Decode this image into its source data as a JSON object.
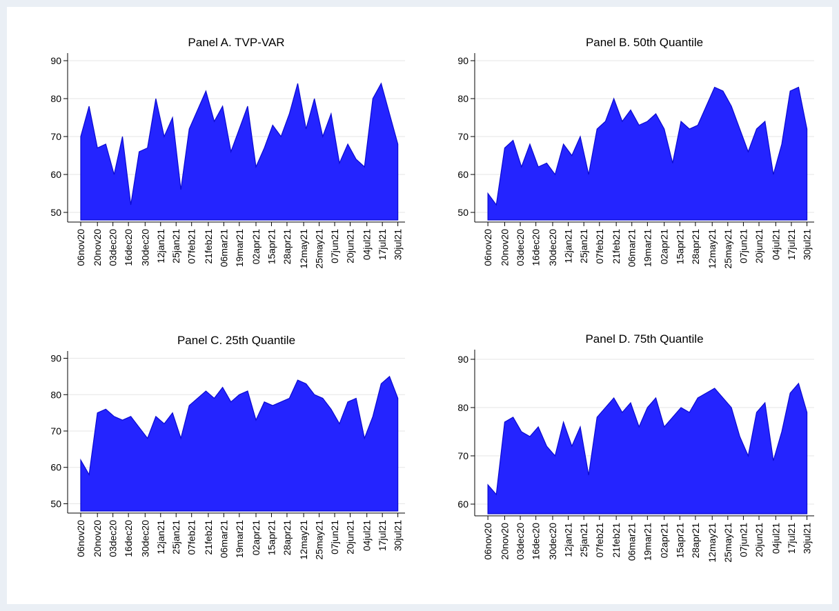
{
  "chart_data": [
    {
      "type": "area",
      "title": "Panel A. TVP-VAR",
      "color": "#2424ff",
      "line_color": "#0a0ad0",
      "x": [
        "2020-11-06",
        "2020-11-13",
        "2020-11-20",
        "2020-11-27",
        "2020-12-04",
        "2020-12-11",
        "2020-12-18",
        "2020-12-25",
        "2021-01-01",
        "2021-01-08",
        "2021-01-15",
        "2021-01-22",
        "2021-01-29",
        "2021-02-05",
        "2021-02-12",
        "2021-02-19",
        "2021-02-26",
        "2021-03-05",
        "2021-03-12",
        "2021-03-19",
        "2021-03-26",
        "2021-04-02",
        "2021-04-09",
        "2021-04-16",
        "2021-04-23",
        "2021-04-30",
        "2021-05-07",
        "2021-05-14",
        "2021-05-21",
        "2021-05-28",
        "2021-06-04",
        "2021-06-11",
        "2021-06-18",
        "2021-06-25",
        "2021-07-02",
        "2021-07-09",
        "2021-07-16",
        "2021-07-23",
        "2021-07-30"
      ],
      "values": [
        70,
        78,
        67,
        68,
        60,
        70,
        52,
        66,
        67,
        80,
        70,
        75,
        56,
        72,
        77,
        82,
        74,
        78,
        66,
        72,
        78,
        62,
        67,
        73,
        70,
        76,
        84,
        72,
        80,
        70,
        76,
        63,
        68,
        64,
        62,
        80,
        84,
        76,
        68
      ],
      "xlim": [
        "2020-10-26",
        "2021-08-05"
      ],
      "ylim": [
        48,
        92
      ],
      "yticks": [
        50,
        60,
        70,
        80,
        90
      ],
      "grid": true,
      "xticks": [
        {
          "value": "2020-11-06",
          "label": "06nov20"
        },
        {
          "value": "2020-11-20",
          "label": "20nov20"
        },
        {
          "value": "2020-12-03",
          "label": "03dec20"
        },
        {
          "value": "2020-12-16",
          "label": "16dec20"
        },
        {
          "value": "2020-12-30",
          "label": "30dec20"
        },
        {
          "value": "2021-01-12",
          "label": "12jan21"
        },
        {
          "value": "2021-01-25",
          "label": "25jan21"
        },
        {
          "value": "2021-02-07",
          "label": "07feb21"
        },
        {
          "value": "2021-02-21",
          "label": "21feb21"
        },
        {
          "value": "2021-03-06",
          "label": "06mar21"
        },
        {
          "value": "2021-03-19",
          "label": "19mar21"
        },
        {
          "value": "2021-04-02",
          "label": "02apr21"
        },
        {
          "value": "2021-04-15",
          "label": "15apr21"
        },
        {
          "value": "2021-04-28",
          "label": "28apr21"
        },
        {
          "value": "2021-05-12",
          "label": "12may21"
        },
        {
          "value": "2021-05-25",
          "label": "25may21"
        },
        {
          "value": "2021-06-07",
          "label": "07jun21"
        },
        {
          "value": "2021-06-20",
          "label": "20jun21"
        },
        {
          "value": "2021-07-04",
          "label": "04jul21"
        },
        {
          "value": "2021-07-17",
          "label": "17jul21"
        },
        {
          "value": "2021-07-30",
          "label": "30jul21"
        }
      ]
    },
    {
      "type": "area",
      "title": "Panel B. 50th Quantile",
      "color": "#2424ff",
      "line_color": "#0a0ad0",
      "x": [
        "2020-11-06",
        "2020-11-13",
        "2020-11-20",
        "2020-11-27",
        "2020-12-04",
        "2020-12-11",
        "2020-12-18",
        "2020-12-25",
        "2021-01-01",
        "2021-01-08",
        "2021-01-15",
        "2021-01-22",
        "2021-01-29",
        "2021-02-05",
        "2021-02-12",
        "2021-02-19",
        "2021-02-26",
        "2021-03-05",
        "2021-03-12",
        "2021-03-19",
        "2021-03-26",
        "2021-04-02",
        "2021-04-09",
        "2021-04-16",
        "2021-04-23",
        "2021-04-30",
        "2021-05-07",
        "2021-05-14",
        "2021-05-21",
        "2021-05-28",
        "2021-06-04",
        "2021-06-11",
        "2021-06-18",
        "2021-06-25",
        "2021-07-02",
        "2021-07-09",
        "2021-07-16",
        "2021-07-23",
        "2021-07-30"
      ],
      "values": [
        55,
        52,
        67,
        69,
        62,
        68,
        62,
        63,
        60,
        68,
        65,
        70,
        60,
        72,
        74,
        80,
        74,
        77,
        73,
        74,
        76,
        72,
        63,
        74,
        72,
        73,
        78,
        83,
        82,
        78,
        72,
        66,
        72,
        74,
        60,
        68,
        82,
        83,
        72
      ],
      "xlim": [
        "2020-10-26",
        "2021-08-05"
      ],
      "ylim": [
        48,
        92
      ],
      "yticks": [
        50,
        60,
        70,
        80,
        90
      ],
      "grid": true,
      "xticks": [
        {
          "value": "2020-11-06",
          "label": "06nov20"
        },
        {
          "value": "2020-11-20",
          "label": "20nov20"
        },
        {
          "value": "2020-12-03",
          "label": "03dec20"
        },
        {
          "value": "2020-12-16",
          "label": "16dec20"
        },
        {
          "value": "2020-12-30",
          "label": "30dec20"
        },
        {
          "value": "2021-01-12",
          "label": "12jan21"
        },
        {
          "value": "2021-01-25",
          "label": "25jan21"
        },
        {
          "value": "2021-02-07",
          "label": "07feb21"
        },
        {
          "value": "2021-02-21",
          "label": "21feb21"
        },
        {
          "value": "2021-03-06",
          "label": "06mar21"
        },
        {
          "value": "2021-03-19",
          "label": "19mar21"
        },
        {
          "value": "2021-04-02",
          "label": "02apr21"
        },
        {
          "value": "2021-04-15",
          "label": "15apr21"
        },
        {
          "value": "2021-04-28",
          "label": "28apr21"
        },
        {
          "value": "2021-05-12",
          "label": "12may21"
        },
        {
          "value": "2021-05-25",
          "label": "25may21"
        },
        {
          "value": "2021-06-07",
          "label": "07jun21"
        },
        {
          "value": "2021-06-20",
          "label": "20jun21"
        },
        {
          "value": "2021-07-04",
          "label": "04jul21"
        },
        {
          "value": "2021-07-17",
          "label": "17jul21"
        },
        {
          "value": "2021-07-30",
          "label": "30jul21"
        }
      ]
    },
    {
      "type": "area",
      "title": "Panel C. 25th Quantile",
      "color": "#2424ff",
      "line_color": "#0a0ad0",
      "x": [
        "2020-11-06",
        "2020-11-13",
        "2020-11-20",
        "2020-11-27",
        "2020-12-04",
        "2020-12-11",
        "2020-12-18",
        "2020-12-25",
        "2021-01-01",
        "2021-01-08",
        "2021-01-15",
        "2021-01-22",
        "2021-01-29",
        "2021-02-05",
        "2021-02-12",
        "2021-02-19",
        "2021-02-26",
        "2021-03-05",
        "2021-03-12",
        "2021-03-19",
        "2021-03-26",
        "2021-04-02",
        "2021-04-09",
        "2021-04-16",
        "2021-04-23",
        "2021-04-30",
        "2021-05-07",
        "2021-05-14",
        "2021-05-21",
        "2021-05-28",
        "2021-06-04",
        "2021-06-11",
        "2021-06-18",
        "2021-06-25",
        "2021-07-02",
        "2021-07-09",
        "2021-07-16",
        "2021-07-23",
        "2021-07-30"
      ],
      "values": [
        62,
        58,
        75,
        76,
        74,
        73,
        74,
        71,
        68,
        74,
        72,
        75,
        68,
        77,
        79,
        81,
        79,
        82,
        78,
        80,
        81,
        73,
        78,
        77,
        78,
        79,
        84,
        83,
        80,
        79,
        76,
        72,
        78,
        79,
        68,
        74,
        83,
        85,
        79
      ],
      "xlim": [
        "2020-10-26",
        "2021-08-05"
      ],
      "ylim": [
        48,
        92
      ],
      "yticks": [
        50,
        60,
        70,
        80,
        90
      ],
      "grid": true,
      "xticks": [
        {
          "value": "2020-11-06",
          "label": "06nov20"
        },
        {
          "value": "2020-11-20",
          "label": "20nov20"
        },
        {
          "value": "2020-12-03",
          "label": "03dec20"
        },
        {
          "value": "2020-12-16",
          "label": "16dec20"
        },
        {
          "value": "2020-12-30",
          "label": "30dec20"
        },
        {
          "value": "2021-01-12",
          "label": "12jan21"
        },
        {
          "value": "2021-01-25",
          "label": "25jan21"
        },
        {
          "value": "2021-02-07",
          "label": "07feb21"
        },
        {
          "value": "2021-02-21",
          "label": "21feb21"
        },
        {
          "value": "2021-03-06",
          "label": "06mar21"
        },
        {
          "value": "2021-03-19",
          "label": "19mar21"
        },
        {
          "value": "2021-04-02",
          "label": "02apr21"
        },
        {
          "value": "2021-04-15",
          "label": "15apr21"
        },
        {
          "value": "2021-04-28",
          "label": "28apr21"
        },
        {
          "value": "2021-05-12",
          "label": "12may21"
        },
        {
          "value": "2021-05-25",
          "label": "25may21"
        },
        {
          "value": "2021-06-07",
          "label": "07jun21"
        },
        {
          "value": "2021-06-20",
          "label": "20jun21"
        },
        {
          "value": "2021-07-04",
          "label": "04jul21"
        },
        {
          "value": "2021-07-17",
          "label": "17jul21"
        },
        {
          "value": "2021-07-30",
          "label": "30jul21"
        }
      ]
    },
    {
      "type": "area",
      "title": "Panel D. 75th Quantile",
      "color": "#2424ff",
      "line_color": "#0a0ad0",
      "x": [
        "2020-11-06",
        "2020-11-13",
        "2020-11-20",
        "2020-11-27",
        "2020-12-04",
        "2020-12-11",
        "2020-12-18",
        "2020-12-25",
        "2021-01-01",
        "2021-01-08",
        "2021-01-15",
        "2021-01-22",
        "2021-01-29",
        "2021-02-05",
        "2021-02-12",
        "2021-02-19",
        "2021-02-26",
        "2021-03-05",
        "2021-03-12",
        "2021-03-19",
        "2021-03-26",
        "2021-04-02",
        "2021-04-09",
        "2021-04-16",
        "2021-04-23",
        "2021-04-30",
        "2021-05-07",
        "2021-05-14",
        "2021-05-21",
        "2021-05-28",
        "2021-06-04",
        "2021-06-11",
        "2021-06-18",
        "2021-06-25",
        "2021-07-02",
        "2021-07-09",
        "2021-07-16",
        "2021-07-23",
        "2021-07-30"
      ],
      "values": [
        64,
        62,
        77,
        78,
        75,
        74,
        76,
        72,
        70,
        77,
        72,
        76,
        66,
        78,
        80,
        82,
        79,
        81,
        76,
        80,
        82,
        76,
        78,
        80,
        79,
        82,
        83,
        84,
        82,
        80,
        74,
        70,
        79,
        81,
        69,
        75,
        83,
        85,
        79
      ],
      "xlim": [
        "2020-10-26",
        "2021-08-05"
      ],
      "ylim": [
        58,
        92
      ],
      "yticks": [
        60,
        70,
        80,
        90
      ],
      "grid": true,
      "xticks": [
        {
          "value": "2020-11-06",
          "label": "06nov20"
        },
        {
          "value": "2020-11-20",
          "label": "20nov20"
        },
        {
          "value": "2020-12-03",
          "label": "03dec20"
        },
        {
          "value": "2020-12-16",
          "label": "16dec20"
        },
        {
          "value": "2020-12-30",
          "label": "30dec20"
        },
        {
          "value": "2021-01-12",
          "label": "12jan21"
        },
        {
          "value": "2021-01-25",
          "label": "25jan21"
        },
        {
          "value": "2021-02-07",
          "label": "07feb21"
        },
        {
          "value": "2021-02-21",
          "label": "21feb21"
        },
        {
          "value": "2021-03-06",
          "label": "06mar21"
        },
        {
          "value": "2021-03-19",
          "label": "19mar21"
        },
        {
          "value": "2021-04-02",
          "label": "02apr21"
        },
        {
          "value": "2021-04-15",
          "label": "15apr21"
        },
        {
          "value": "2021-04-28",
          "label": "28apr21"
        },
        {
          "value": "2021-05-12",
          "label": "12may21"
        },
        {
          "value": "2021-05-25",
          "label": "25may21"
        },
        {
          "value": "2021-06-07",
          "label": "07jun21"
        },
        {
          "value": "2021-06-20",
          "label": "20jun21"
        },
        {
          "value": "2021-07-04",
          "label": "04jul21"
        },
        {
          "value": "2021-07-17",
          "label": "17jul21"
        },
        {
          "value": "2021-07-30",
          "label": "30jul21"
        }
      ]
    }
  ]
}
